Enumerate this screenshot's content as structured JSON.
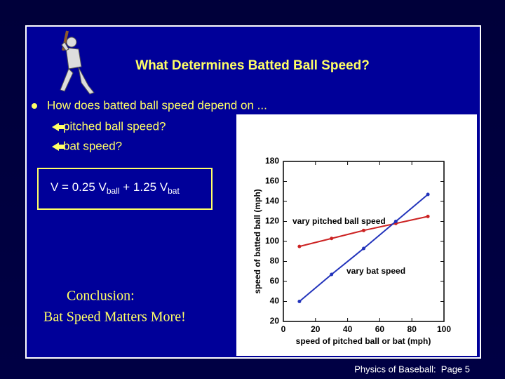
{
  "slide": {
    "title": "What Determines Batted Ball Speed?",
    "bullet": "How does batted ball speed depend on ...",
    "sub_bullets": [
      "pitched ball speed?",
      "bat speed?"
    ],
    "formula": {
      "parts": [
        "V = 0.25 V",
        "ball",
        " + 1.25 V",
        "bat"
      ]
    },
    "conclusion": [
      "Conclusion:",
      "Bat Speed Matters More!"
    ],
    "footer": "Physics of Baseball:  Page 5"
  },
  "chart_data": {
    "type": "line",
    "x_label": "speed of pitched ball or bat (mph)",
    "y_label": "speed of batted ball (mph)",
    "x": [
      10,
      30,
      50,
      70,
      90
    ],
    "series": [
      {
        "name": "vary pitched ball speed",
        "color": "#cc2222",
        "values": [
          95,
          103,
          111,
          118,
          125
        ]
      },
      {
        "name": "vary bat speed",
        "color": "#2233bb",
        "values": [
          40,
          67,
          93,
          120,
          147
        ]
      }
    ],
    "xlim": [
      0,
      100
    ],
    "ylim": [
      20,
      180
    ],
    "xticks": [
      0,
      20,
      40,
      60,
      80,
      100
    ],
    "yticks": [
      20,
      40,
      60,
      80,
      100,
      120,
      140,
      160,
      180
    ]
  }
}
